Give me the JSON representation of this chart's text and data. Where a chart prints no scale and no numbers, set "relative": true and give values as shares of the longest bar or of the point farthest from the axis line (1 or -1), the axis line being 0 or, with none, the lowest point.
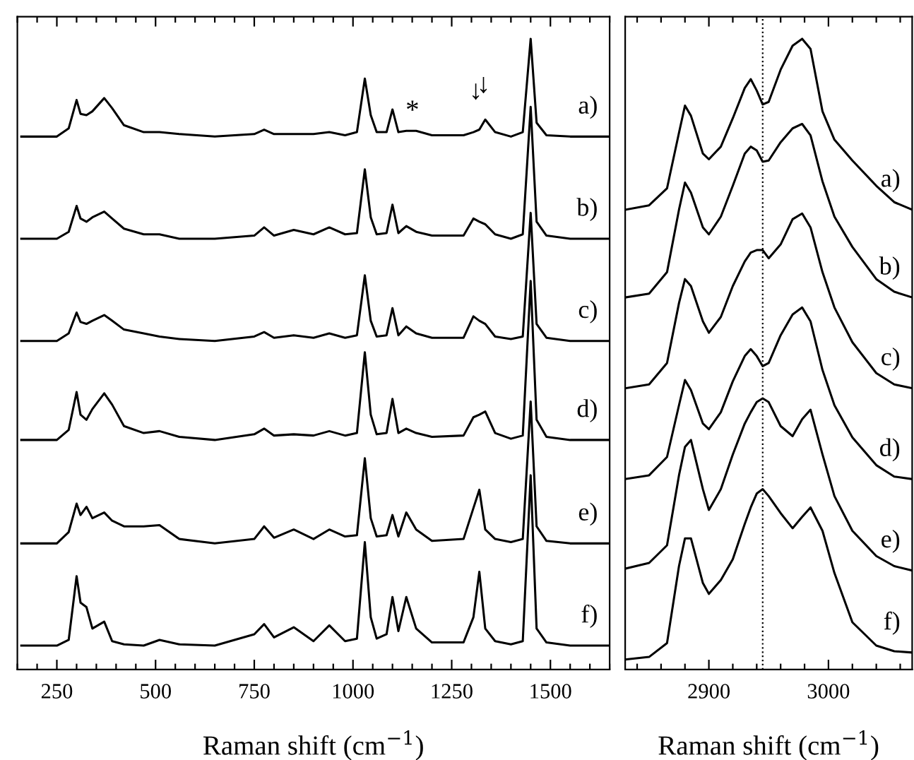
{
  "chart_data": [
    {
      "type": "line",
      "xlabel": "Raman shift (cm$^{−1}$)",
      "relative": true,
      "tick_labels": "x",
      "x": [
        160,
        250,
        280,
        300,
        310,
        325,
        340,
        370,
        390,
        420,
        470,
        510,
        560,
        650,
        750,
        775,
        800,
        850,
        900,
        940,
        980,
        1010,
        1030,
        1045,
        1060,
        1085,
        1100,
        1115,
        1135,
        1160,
        1200,
        1280,
        1305,
        1320,
        1335,
        1360,
        1400,
        1430,
        1450,
        1465,
        1490,
        1550,
        1650
      ],
      "xlim": [
        150,
        1650
      ],
      "xticks": [
        {
          "value": 150,
          "label": null
        },
        {
          "value": 200,
          "label": null
        },
        250,
        {
          "value": 300,
          "label": null
        },
        {
          "value": 350,
          "label": null
        },
        {
          "value": 400,
          "label": null
        },
        {
          "value": 450,
          "label": null
        },
        500,
        {
          "value": 550,
          "label": null
        },
        {
          "value": 600,
          "label": null
        },
        {
          "value": 650,
          "label": null
        },
        {
          "value": 700,
          "label": null
        },
        750,
        {
          "value": 800,
          "label": null
        },
        {
          "value": 850,
          "label": null
        },
        {
          "value": 900,
          "label": null
        },
        {
          "value": 950,
          "label": null
        },
        1000,
        {
          "value": 1050,
          "label": null
        },
        {
          "value": 1100,
          "label": null
        },
        {
          "value": 1150,
          "label": null
        },
        {
          "value": 1200,
          "label": null
        },
        1250,
        {
          "value": 1300,
          "label": null
        },
        {
          "value": 1350,
          "label": null
        },
        {
          "value": 1400,
          "label": null
        },
        {
          "value": 1450,
          "label": null
        },
        1500,
        {
          "value": 1550,
          "label": null
        },
        {
          "value": 1600,
          "label": null
        },
        {
          "value": 1650,
          "label": null
        }
      ],
      "series": [
        {
          "name": "a)",
          "color": "#000000",
          "values": [
            0.845,
            0.845,
            0.858,
            0.903,
            0.881,
            0.879,
            0.885,
            0.906,
            0.89,
            0.863,
            0.852,
            0.852,
            0.849,
            0.845,
            0.849,
            0.856,
            0.849,
            0.849,
            0.849,
            0.852,
            0.847,
            0.852,
            0.937,
            0.879,
            0.852,
            0.852,
            0.888,
            0.852,
            0.854,
            0.854,
            0.847,
            0.847,
            0.852,
            0.856,
            0.872,
            0.852,
            0.845,
            0.852,
            1.0,
            0.867,
            0.847,
            0.845,
            0.845
          ]
        },
        {
          "name": "b)",
          "color": "#000000",
          "values": [
            0.683,
            0.683,
            0.694,
            0.735,
            0.715,
            0.71,
            0.717,
            0.726,
            0.715,
            0.699,
            0.69,
            0.69,
            0.683,
            0.683,
            0.688,
            0.701,
            0.688,
            0.697,
            0.69,
            0.701,
            0.69,
            0.692,
            0.793,
            0.717,
            0.69,
            0.692,
            0.737,
            0.692,
            0.703,
            0.694,
            0.688,
            0.688,
            0.715,
            0.71,
            0.706,
            0.69,
            0.683,
            0.69,
            0.892,
            0.71,
            0.688,
            0.683,
            0.683
          ]
        },
        {
          "name": "c)",
          "color": "#000000",
          "values": [
            0.521,
            0.521,
            0.533,
            0.566,
            0.551,
            0.548,
            0.553,
            0.562,
            0.553,
            0.539,
            0.533,
            0.528,
            0.524,
            0.521,
            0.528,
            0.535,
            0.526,
            0.53,
            0.526,
            0.533,
            0.526,
            0.53,
            0.625,
            0.553,
            0.528,
            0.53,
            0.573,
            0.53,
            0.544,
            0.533,
            0.526,
            0.526,
            0.56,
            0.553,
            0.548,
            0.528,
            0.524,
            0.528,
            0.724,
            0.548,
            0.526,
            0.521,
            0.521
          ]
        },
        {
          "name": "d)",
          "color": "#000000",
          "values": [
            0.364,
            0.364,
            0.38,
            0.44,
            0.404,
            0.396,
            0.413,
            0.438,
            0.42,
            0.386,
            0.375,
            0.378,
            0.369,
            0.364,
            0.373,
            0.382,
            0.371,
            0.373,
            0.371,
            0.378,
            0.371,
            0.375,
            0.503,
            0.404,
            0.373,
            0.375,
            0.429,
            0.375,
            0.382,
            0.375,
            0.369,
            0.371,
            0.4,
            0.404,
            0.409,
            0.375,
            0.366,
            0.371,
            0.616,
            0.396,
            0.369,
            0.364,
            0.364
          ]
        },
        {
          "name": "e)",
          "color": "#000000",
          "values": [
            0.2,
            0.2,
            0.218,
            0.263,
            0.245,
            0.258,
            0.24,
            0.249,
            0.236,
            0.227,
            0.227,
            0.229,
            0.207,
            0.2,
            0.207,
            0.227,
            0.209,
            0.222,
            0.207,
            0.222,
            0.211,
            0.213,
            0.335,
            0.24,
            0.211,
            0.213,
            0.245,
            0.211,
            0.249,
            0.222,
            0.204,
            0.207,
            0.256,
            0.285,
            0.222,
            0.207,
            0.202,
            0.207,
            0.425,
            0.227,
            0.204,
            0.2,
            0.2
          ]
        },
        {
          "name": "f)",
          "color": "#000000",
          "values": [
            0.038,
            0.038,
            0.047,
            0.148,
            0.106,
            0.099,
            0.065,
            0.076,
            0.045,
            0.04,
            0.038,
            0.047,
            0.04,
            0.038,
            0.056,
            0.072,
            0.051,
            0.067,
            0.045,
            0.07,
            0.045,
            0.049,
            0.202,
            0.083,
            0.049,
            0.056,
            0.115,
            0.061,
            0.115,
            0.065,
            0.043,
            0.043,
            0.083,
            0.155,
            0.065,
            0.045,
            0.04,
            0.045,
            0.308,
            0.065,
            0.043,
            0.038,
            0.038
          ]
        }
      ],
      "annotations": [
        "*",
        "↓",
        "↓"
      ]
    },
    {
      "type": "line",
      "xlabel": "Raman shift (cm$^{−1}$)",
      "relative": true,
      "tick_labels": "x",
      "x": [
        2830,
        2850,
        2865,
        2875,
        2880,
        2885,
        2895,
        2900,
        2910,
        2920,
        2930,
        2935,
        2940,
        2945,
        2950,
        2960,
        2970,
        2978,
        2985,
        2995,
        3005,
        3020,
        3040,
        3055,
        3070
      ],
      "xlim": [
        2830,
        3070
      ],
      "xticks": [
        {
          "value": 2840,
          "label": null
        },
        {
          "value": 2860,
          "label": null
        },
        {
          "value": 2880,
          "label": null
        },
        2900,
        {
          "value": 2920,
          "label": null
        },
        {
          "value": 2940,
          "label": null
        },
        {
          "value": 2960,
          "label": null
        },
        {
          "value": 2980,
          "label": null
        },
        3000,
        {
          "value": 3020,
          "label": null
        },
        {
          "value": 3040,
          "label": null
        },
        {
          "value": 3060,
          "label": null
        }
      ],
      "series": [
        {
          "name": "a)",
          "color": "#000000",
          "values": [
            0.729,
            0.736,
            0.763,
            0.851,
            0.894,
            0.878,
            0.818,
            0.809,
            0.829,
            0.874,
            0.922,
            0.936,
            0.918,
            0.896,
            0.9,
            0.951,
            0.989,
            1.0,
            0.984,
            0.885,
            0.84,
            0.807,
            0.767,
            0.741,
            0.729
          ]
        },
        {
          "name": "b)",
          "color": "#000000",
          "values": [
            0.59,
            0.596,
            0.63,
            0.729,
            0.772,
            0.756,
            0.701,
            0.69,
            0.718,
            0.767,
            0.818,
            0.829,
            0.823,
            0.805,
            0.807,
            0.836,
            0.858,
            0.865,
            0.847,
            0.774,
            0.718,
            0.67,
            0.619,
            0.599,
            0.59
          ]
        },
        {
          "name": "c)",
          "color": "#000000",
          "values": [
            0.446,
            0.452,
            0.486,
            0.581,
            0.619,
            0.608,
            0.552,
            0.534,
            0.559,
            0.608,
            0.647,
            0.661,
            0.665,
            0.665,
            0.652,
            0.674,
            0.714,
            0.723,
            0.701,
            0.63,
            0.574,
            0.519,
            0.47,
            0.452,
            0.446
          ]
        },
        {
          "name": "d)",
          "color": "#000000",
          "values": [
            0.302,
            0.308,
            0.337,
            0.419,
            0.459,
            0.443,
            0.39,
            0.381,
            0.408,
            0.457,
            0.497,
            0.508,
            0.497,
            0.481,
            0.486,
            0.53,
            0.563,
            0.574,
            0.552,
            0.475,
            0.419,
            0.368,
            0.324,
            0.306,
            0.302
          ]
        },
        {
          "name": "e)",
          "color": "#000000",
          "values": [
            0.16,
            0.169,
            0.197,
            0.308,
            0.353,
            0.364,
            0.286,
            0.253,
            0.286,
            0.341,
            0.39,
            0.408,
            0.424,
            0.43,
            0.424,
            0.386,
            0.37,
            0.397,
            0.412,
            0.341,
            0.275,
            0.22,
            0.18,
            0.164,
            0.157
          ]
        },
        {
          "name": "f)",
          "color": "#000000",
          "values": [
            0.016,
            0.02,
            0.042,
            0.164,
            0.208,
            0.208,
            0.137,
            0.12,
            0.142,
            0.175,
            0.231,
            0.257,
            0.279,
            0.286,
            0.275,
            0.248,
            0.224,
            0.242,
            0.257,
            0.22,
            0.153,
            0.075,
            0.038,
            0.029,
            0.027
          ]
        }
      ],
      "ref_lines": [
        {
          "axis": "x",
          "value": 2945,
          "color": "#000000",
          "line_style": "dotted"
        }
      ]
    }
  ]
}
